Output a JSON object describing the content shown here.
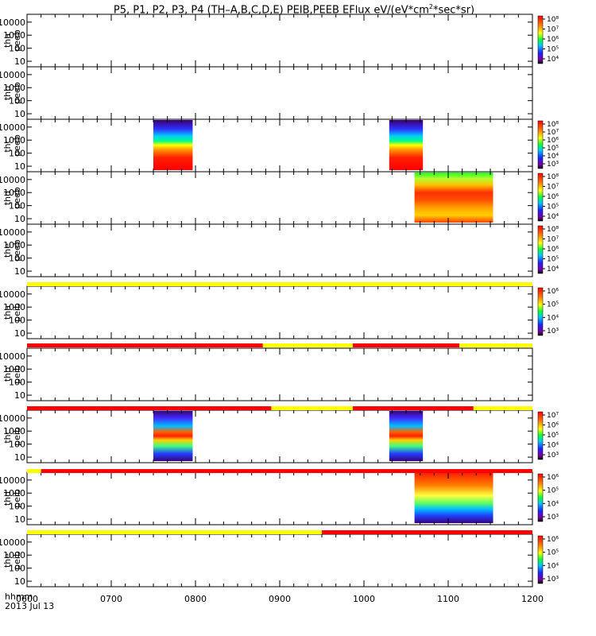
{
  "title_parts": [
    "P5, P1, P2, P3, P4 (TH–A,B,C,D,E) PEIB,PEEB EFlux eV/(eV*cm",
    "2",
    "*sec*sr)"
  ],
  "footer": {
    "time_label": "hhmm",
    "date": "2013 Jul 13"
  },
  "chart_data": {
    "type": "heatmap",
    "x_ticks": [
      "0600",
      "0700",
      "0800",
      "0900",
      "1000",
      "1100",
      "1200"
    ],
    "xlim": [
      "0600",
      "1200"
    ],
    "y_ticks": [
      "10",
      "100",
      "1000",
      "10000"
    ],
    "ylim_eV": [
      5,
      30000
    ],
    "y_scale": "log",
    "panels": [
      {
        "probe": "tha",
        "product": "peeb",
        "colorbar_ticks": [
          "10⁴",
          "10⁵",
          "10⁶",
          "10⁷",
          "10⁸"
        ],
        "data_blocks": []
      },
      {
        "probe": "thb",
        "product": "peeb",
        "colorbar_ticks": [],
        "data_blocks": []
      },
      {
        "probe": "thc",
        "product": "peeb",
        "colorbar_ticks": [
          "10³",
          "10⁴",
          "10⁵",
          "10⁶",
          "10⁷",
          "10⁸"
        ],
        "data_blocks": [
          {
            "start": "0730",
            "end": "0758"
          },
          {
            "start": "1018",
            "end": "1042"
          }
        ]
      },
      {
        "probe": "thd",
        "product": "peeb",
        "colorbar_ticks": [
          "10⁴",
          "10⁵",
          "10⁶",
          "10⁷",
          "10⁸"
        ],
        "data_blocks": [
          {
            "start": "1036",
            "end": "1132"
          }
        ]
      },
      {
        "probe": "the",
        "product": "peeb",
        "colorbar_ticks": [
          "10⁴",
          "10⁵",
          "10⁶",
          "10⁷",
          "10⁸"
        ],
        "data_blocks": []
      },
      {
        "probe": "tha",
        "product": "peib",
        "colorbar_ticks": [
          "10³",
          "10⁴",
          "10⁵",
          "10⁶"
        ],
        "data_blocks": []
      },
      {
        "probe": "thb",
        "product": "peib",
        "colorbar_ticks": [],
        "data_blocks": []
      },
      {
        "probe": "thc",
        "product": "peib",
        "colorbar_ticks": [
          "10³",
          "10⁴",
          "10⁵",
          "10⁶",
          "10⁷"
        ],
        "data_blocks": [
          {
            "start": "0730",
            "end": "0758"
          },
          {
            "start": "1018",
            "end": "1042"
          }
        ]
      },
      {
        "probe": "thd",
        "product": "peib",
        "colorbar_ticks": [
          "10³",
          "10⁴",
          "10⁵",
          "10⁶"
        ],
        "data_blocks": [
          {
            "start": "1036",
            "end": "1132"
          }
        ]
      },
      {
        "probe": "the",
        "product": "peib",
        "colorbar_ticks": [
          "10³",
          "10⁴",
          "10⁵",
          "10⁶"
        ],
        "data_blocks": []
      }
    ],
    "mode_bars": [
      {
        "segments": [
          {
            "start": "0600",
            "end": "1200",
            "color": "#ffff00"
          }
        ]
      },
      {
        "segments": [
          {
            "start": "0600",
            "end": "0848",
            "color": "#ff0000"
          },
          {
            "start": "0848",
            "end": "0952",
            "color": "#ffff00"
          },
          {
            "start": "0952",
            "end": "1108",
            "color": "#ff0000"
          },
          {
            "start": "1108",
            "end": "1200",
            "color": "#ffff00"
          }
        ]
      },
      {
        "segments": [
          {
            "start": "0600",
            "end": "0854",
            "color": "#ff0000"
          },
          {
            "start": "0854",
            "end": "0952",
            "color": "#ffff00"
          },
          {
            "start": "0952",
            "end": "1118",
            "color": "#ff0000"
          },
          {
            "start": "1118",
            "end": "1200",
            "color": "#ffff00"
          }
        ]
      },
      {
        "segments": [
          {
            "start": "0600",
            "end": "0610",
            "color": "#ffff00"
          },
          {
            "start": "0610",
            "end": "1200",
            "color": "#ff0000"
          }
        ]
      },
      {
        "segments": [
          {
            "start": "0600",
            "end": "0930",
            "color": "#ffff00"
          },
          {
            "start": "0930",
            "end": "1200",
            "color": "#ff0000"
          }
        ]
      }
    ]
  }
}
